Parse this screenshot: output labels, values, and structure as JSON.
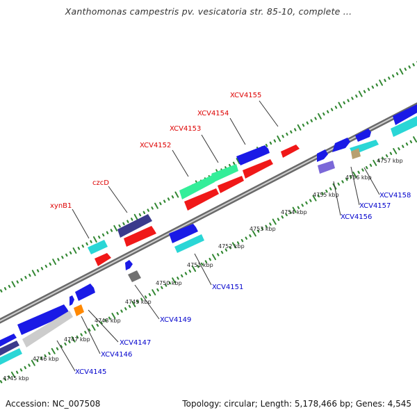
{
  "title": "Xanthomonas campestris pv. vesicatoria str. 85-10, complete ...",
  "colors": {
    "blue": "#1a1ae6",
    "red": "#f01818",
    "teal": "#2ad6d6",
    "green": "#33ee99",
    "navy": "#3a3a8c",
    "purple": "#7b68d8",
    "gray": "#707070",
    "lightgray": "#cccccc",
    "orange": "#ff8800",
    "tan": "#b8a070",
    "label_red": "#dd0000",
    "label_blue": "#0000cc",
    "tick_green": "#338833",
    "backbone": "#888888"
  },
  "scale_labels": [
    "4745 kbp",
    "4746 kbp",
    "4747 kbp",
    "4748 kbp",
    "4749 kbp",
    "4750 kbp",
    "4751 kbp",
    "4752 kbp",
    "4753 kbp",
    "4754 kbp",
    "4755 kbp",
    "4756 kbp",
    "4757 kbp"
  ],
  "genes_above": [
    {
      "name": "xynB1"
    },
    {
      "name": "czcD"
    },
    {
      "name": "XCV4152"
    },
    {
      "name": "XCV4153"
    },
    {
      "name": "XCV4154"
    },
    {
      "name": "XCV4155"
    }
  ],
  "genes_below": [
    {
      "name": "XCV4145"
    },
    {
      "name": "XCV4146"
    },
    {
      "name": "XCV4147"
    },
    {
      "name": "XCV4149"
    },
    {
      "name": "XCV4151"
    },
    {
      "name": "XCV4156"
    },
    {
      "name": "XCV4157"
    },
    {
      "name": "XCV4158"
    }
  ],
  "footer": {
    "accession": "Accession: NC_007508",
    "summary": "Topology: circular; Length: 5,178,466 bp; Genes: 4,545"
  }
}
